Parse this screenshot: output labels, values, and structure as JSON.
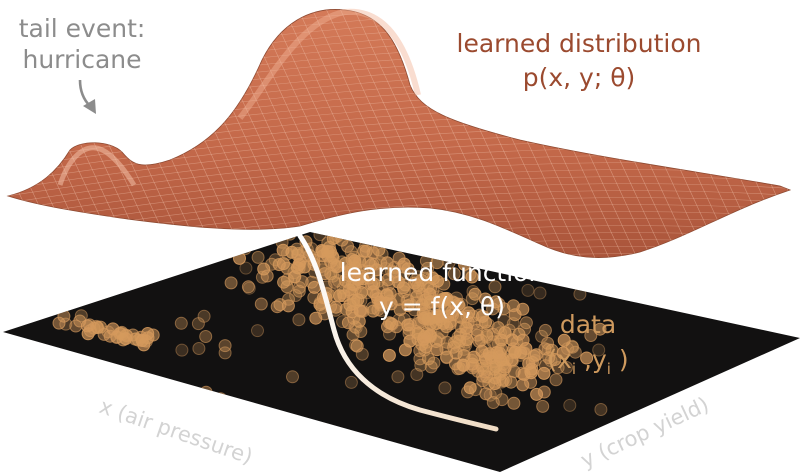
{
  "labels": {
    "tail_event_line1": "tail event:",
    "tail_event_line2": "hurricane",
    "distribution_line1": "learned distribution",
    "distribution_line2": "p(x, y; θ)",
    "function_line1": "learned function",
    "function_line2": "y = f(x, θ)",
    "data_line1": "data",
    "data_x": "(x",
    "data_i1": "i",
    "data_comma": " ,y",
    "data_i2": "i",
    "data_close": " )",
    "x_axis": "x (air pressure)",
    "y_axis": "y (crop yield)"
  },
  "colors": {
    "surface": "#c4694a",
    "surface_light": "#e9a283",
    "surface_mesh": "#f2c4ad",
    "surface_label": "#9b4a2f",
    "floor": "#121111",
    "points": "#d59a5d",
    "curve": "#f4e7d5",
    "annotation": "#8c8c8c",
    "data_label": "#cf9a5e",
    "axis_label": "#d3d3d3"
  }
}
